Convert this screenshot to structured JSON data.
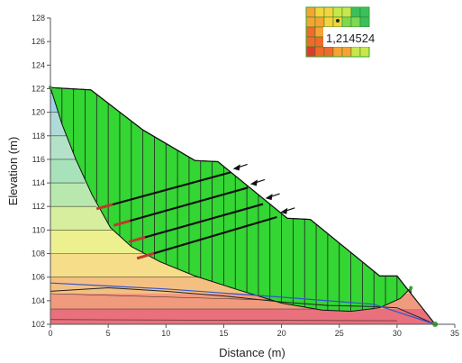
{
  "chart_data": {
    "type": "slope-stability-section",
    "xlabel": "Distance (m)",
    "ylabel": "Elevation (m)",
    "xlim": [
      0,
      35
    ],
    "ylim": [
      102,
      128
    ],
    "x_ticks": [
      0,
      5,
      10,
      15,
      20,
      25,
      30,
      35
    ],
    "y_ticks": [
      102,
      104,
      106,
      108,
      110,
      112,
      114,
      116,
      118,
      120,
      122,
      124,
      126,
      128
    ],
    "factor_of_safety": "1,214524",
    "ground_surface": [
      [
        0,
        122.1
      ],
      [
        3.5,
        121.9
      ],
      [
        8,
        118.5
      ],
      [
        12.5,
        115.9
      ],
      [
        14.5,
        115.8
      ],
      [
        20.5,
        111.0
      ],
      [
        22.5,
        110.9
      ],
      [
        28.5,
        106.1
      ],
      [
        30,
        106.1
      ],
      [
        33.3,
        102.0
      ]
    ],
    "slip_surface": [
      [
        0,
        122.1
      ],
      [
        1,
        119
      ],
      [
        2.2,
        116
      ],
      [
        3.6,
        113
      ],
      [
        5.2,
        110.2
      ],
      [
        7,
        108.6
      ],
      [
        9.5,
        107.3
      ],
      [
        12.5,
        106.1
      ],
      [
        16,
        105
      ],
      [
        20,
        103.8
      ],
      [
        23.5,
        103.2
      ],
      [
        26,
        103.1
      ],
      [
        28.5,
        103.4
      ],
      [
        30.3,
        104.2
      ],
      [
        31.2,
        105.1
      ]
    ],
    "slice_boundaries_x": [
      1,
      2,
      3,
      4,
      5,
      6,
      7,
      8,
      9,
      10,
      11,
      12,
      13,
      14,
      15,
      16,
      17,
      18,
      19,
      20,
      21,
      22,
      23,
      24,
      25,
      26,
      27,
      28,
      29,
      30
    ],
    "pore_pressure_contours": [
      {
        "color": "#8fc3e6",
        "points": [
          [
            0,
            121.6
          ],
          [
            1.1,
            121.6
          ]
        ]
      },
      {
        "color": "#a0d2e6",
        "points": [
          [
            0,
            120.0
          ],
          [
            1.1,
            120.0
          ]
        ]
      },
      {
        "color": "#aedbd7",
        "points": [
          [
            0,
            118.0
          ],
          [
            1.4,
            118.0
          ]
        ]
      },
      {
        "color": "#b4e2c9",
        "points": [
          [
            0,
            116.0
          ],
          [
            2.2,
            116.0
          ]
        ]
      },
      {
        "color": "#a8e2ba",
        "points": [
          [
            0,
            114.0
          ],
          [
            3.0,
            114.0
          ]
        ]
      },
      {
        "color": "#b9e8ae",
        "points": [
          [
            0,
            112.0
          ],
          [
            4.0,
            112.0
          ]
        ]
      },
      {
        "color": "#d6ee9e",
        "points": [
          [
            0,
            110.0
          ],
          [
            5.4,
            110.0
          ]
        ]
      },
      {
        "color": "#ecf08f",
        "points": [
          [
            0,
            108.0
          ],
          [
            9.0,
            108.0
          ]
        ]
      },
      {
        "color": "#f6dd8a",
        "points": [
          [
            0,
            106.0
          ],
          [
            14.0,
            106.0
          ]
        ]
      },
      {
        "color": "#f4c082",
        "points": [
          [
            0,
            104.6
          ],
          [
            21.0,
            104.0
          ]
        ]
      },
      {
        "color": "#f09a7e",
        "points": [
          [
            0,
            103.3
          ],
          [
            28.0,
            103.3
          ]
        ]
      },
      {
        "color": "#e9707d",
        "points": [
          [
            0,
            102.4
          ],
          [
            30.0,
            102.3
          ]
        ]
      }
    ],
    "layer_boundary": [
      [
        0,
        104.8
      ],
      [
        5,
        105.1
      ],
      [
        10,
        104.8
      ],
      [
        15,
        104.4
      ],
      [
        20,
        103.9
      ],
      [
        24,
        103.6
      ],
      [
        28,
        103.5
      ],
      [
        30,
        103.4
      ],
      [
        33.3,
        102.0
      ]
    ],
    "water_table": [
      [
        0,
        105.5
      ],
      [
        10,
        105.0
      ],
      [
        20,
        104.3
      ],
      [
        28,
        103.7
      ],
      [
        33.3,
        102.0
      ]
    ],
    "anchors": [
      {
        "x1": 4.0,
        "y1": 111.8,
        "x2": 15.6,
        "y2": 114.9
      },
      {
        "x1": 5.5,
        "y1": 110.4,
        "x2": 17.1,
        "y2": 113.6
      },
      {
        "x1": 6.8,
        "y1": 109.0,
        "x2": 18.4,
        "y2": 112.2
      },
      {
        "x1": 7.5,
        "y1": 107.6,
        "x2": 19.6,
        "y2": 111.1
      }
    ],
    "load_arrows": [
      {
        "x": 15.8,
        "y": 115.2
      },
      {
        "x": 17.3,
        "y": 113.9
      },
      {
        "x": 18.6,
        "y": 112.7
      },
      {
        "x": 19.9,
        "y": 111.5
      }
    ]
  },
  "colors": {
    "sliding_mass": "#33d633",
    "slice_line": "#222222",
    "anchor": "#111111",
    "anchor_head": "#c0392b",
    "grid_box_outline": "#33aa33"
  }
}
